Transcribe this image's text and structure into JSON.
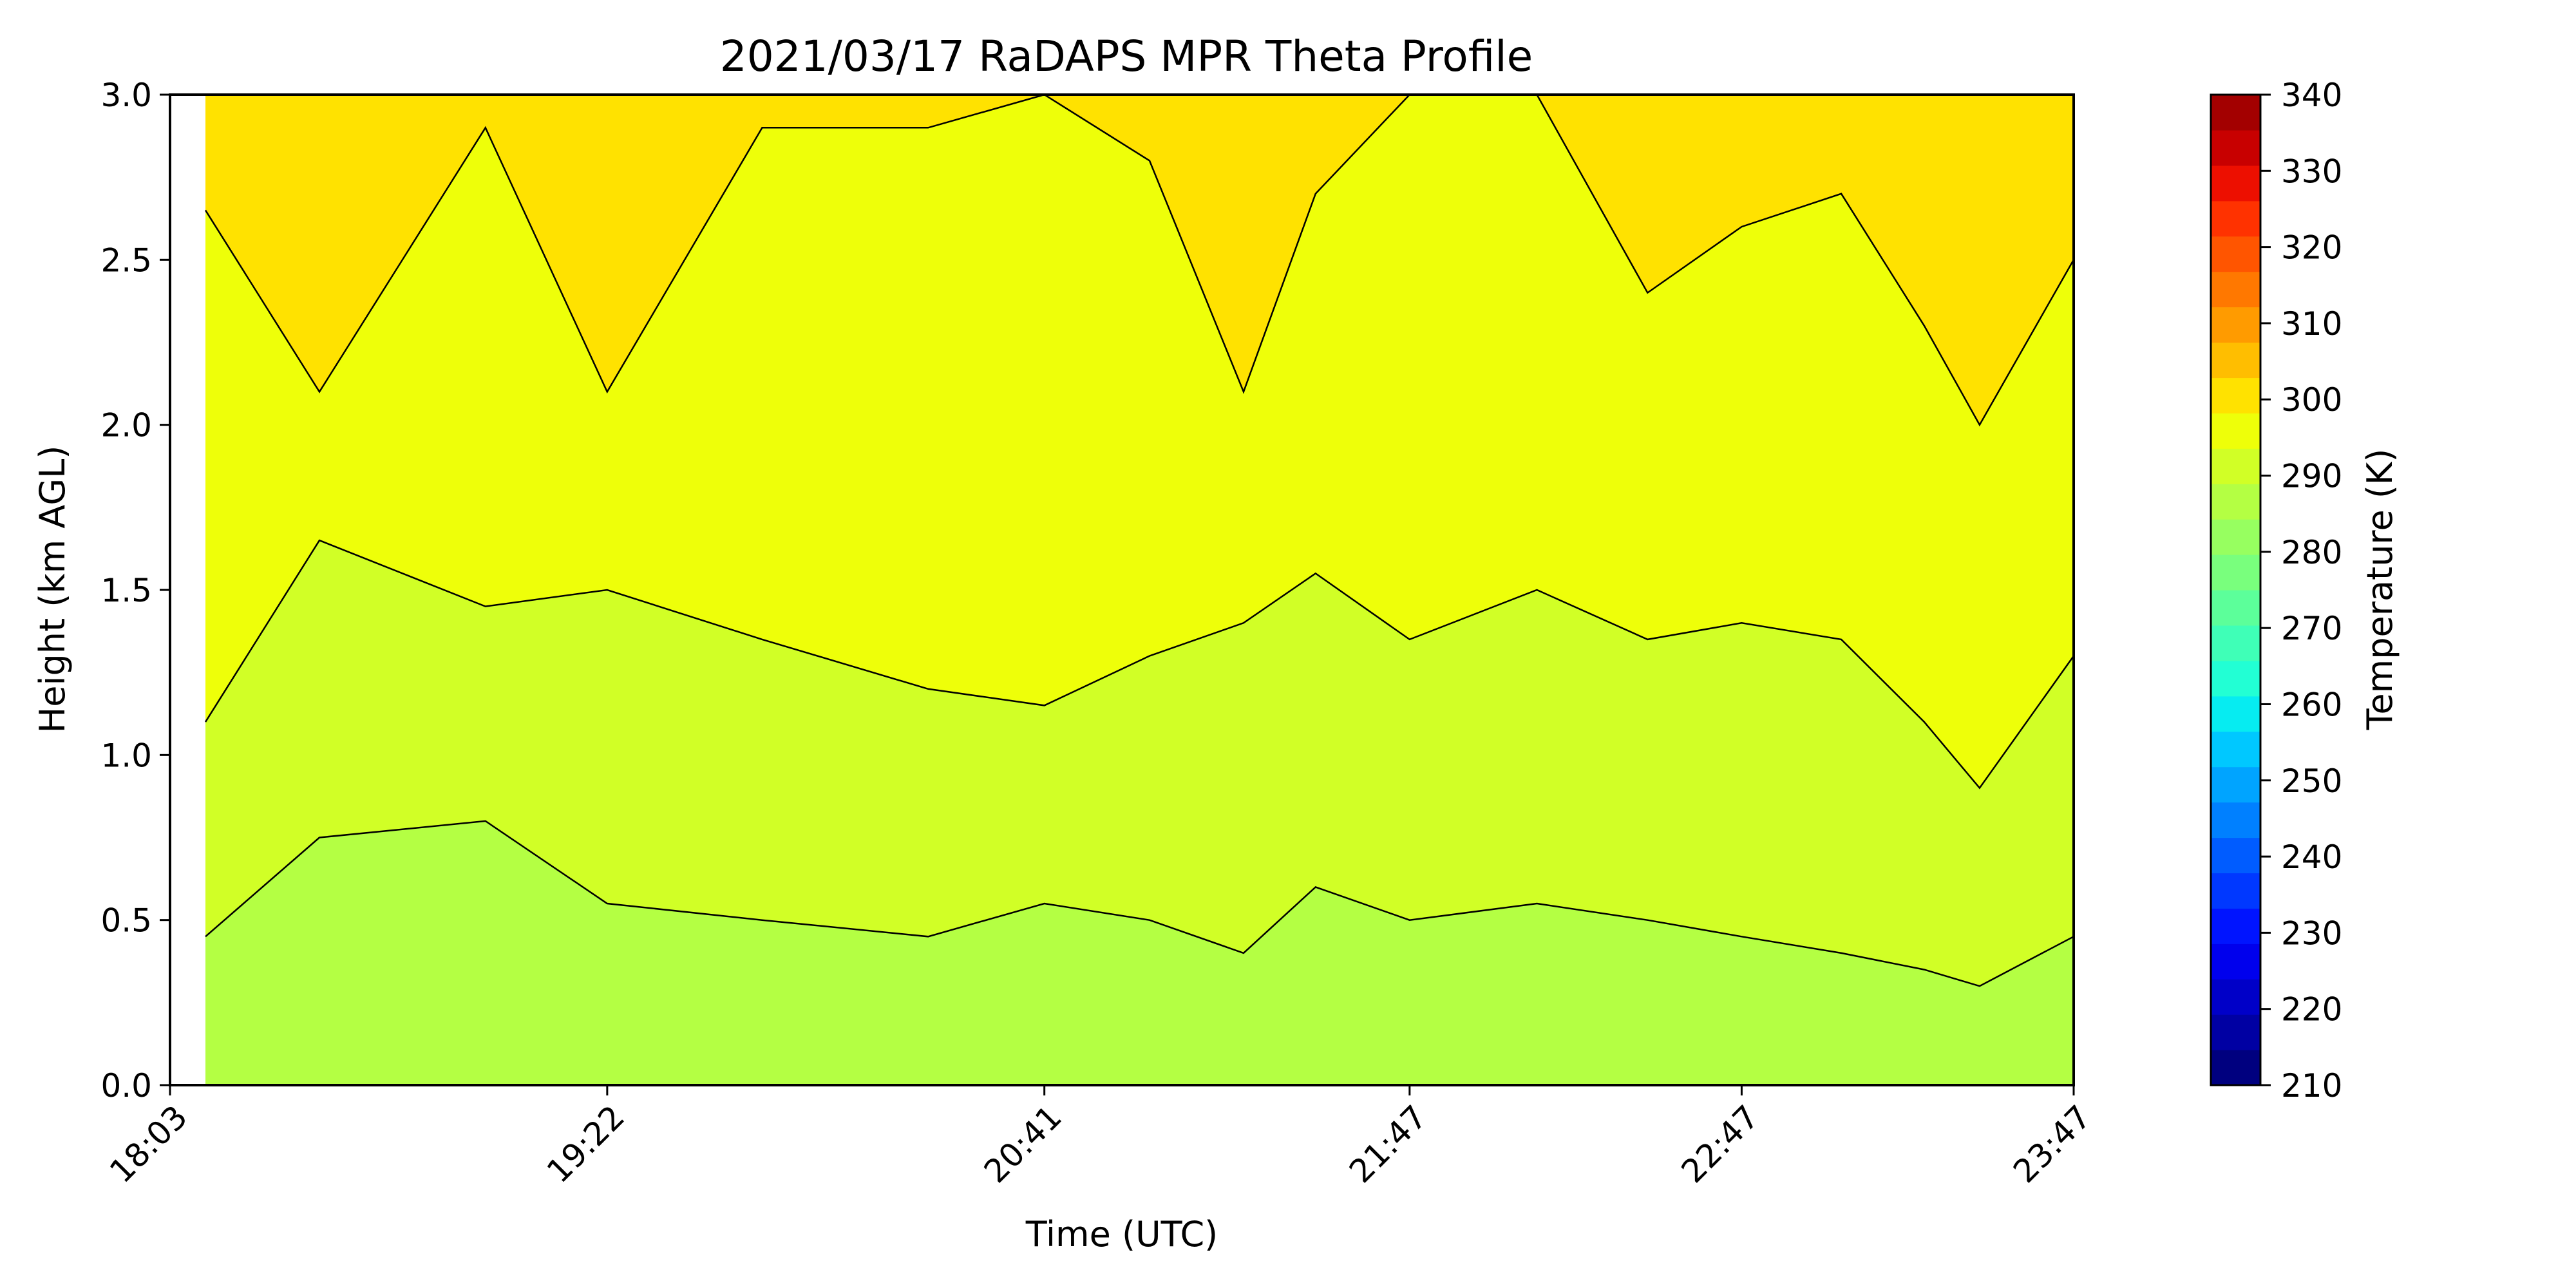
{
  "chart_data": {
    "type": "heatmap",
    "subtype": "filled-contour",
    "title": "2021/03/17 RaDAPS MPR Theta Profile",
    "xlabel": "Time (UTC)",
    "ylabel": "Height (km AGL)",
    "xlim": [
      "18:03",
      "23:47"
    ],
    "ylim": [
      0.0,
      3.0
    ],
    "x_ticks": [
      "18:03",
      "19:22",
      "20:41",
      "21:47",
      "22:47",
      "23:47"
    ],
    "y_ticks": [
      "0.0",
      "0.5",
      "1.0",
      "1.5",
      "2.0",
      "2.5",
      "3.0"
    ],
    "grid": false,
    "colorbar": {
      "label": "Temperature (K)",
      "range": [
        210,
        340
      ],
      "step": 5,
      "tick_labels": [
        "210",
        "220",
        "230",
        "240",
        "250",
        "260",
        "270",
        "280",
        "290",
        "300",
        "310",
        "320",
        "330",
        "340"
      ],
      "colormap": "jet",
      "colors": [
        "#00007f",
        "#0000a3",
        "#0000c8",
        "#0000ed",
        "#0014ff",
        "#0038ff",
        "#005cff",
        "#0080ff",
        "#00a4ff",
        "#00c8ff",
        "#06ecf1",
        "#22ffd4",
        "#3fffb7",
        "#5cff9a",
        "#79ff7d",
        "#97ff60",
        "#b4ff43",
        "#d1ff26",
        "#eeff09",
        "#ffe200",
        "#ffbe00",
        "#ff9b00",
        "#ff7800",
        "#ff5500",
        "#ff3200",
        "#ed0f00",
        "#c80000",
        "#a30000"
      ]
    },
    "contour_levels_K": [
      285,
      290,
      295,
      300,
      305,
      310
    ],
    "contour_line_color": "#000000",
    "band_heights_km": {
      "times_hhmm": [
        "18:03",
        "18:30",
        "19:00",
        "19:22",
        "19:50",
        "20:20",
        "20:41",
        "21:00",
        "21:17",
        "21:30",
        "21:47",
        "22:10",
        "22:30",
        "22:47",
        "23:05",
        "23:20",
        "23:30",
        "23:47"
      ],
      "isoline_290K": [
        0.45,
        0.75,
        0.8,
        0.55,
        0.5,
        0.45,
        0.55,
        0.5,
        0.4,
        0.6,
        0.5,
        0.55,
        0.5,
        0.45,
        0.4,
        0.35,
        0.3,
        0.45
      ],
      "isoline_295K": [
        1.1,
        1.65,
        1.45,
        1.5,
        1.35,
        1.2,
        1.15,
        1.3,
        1.4,
        1.55,
        1.35,
        1.5,
        1.35,
        1.4,
        1.35,
        1.1,
        0.9,
        1.3
      ],
      "isoline_300K": [
        2.65,
        2.1,
        2.9,
        2.1,
        2.9,
        2.9,
        3.0,
        2.8,
        2.1,
        2.7,
        3.0,
        3.0,
        2.4,
        2.6,
        2.7,
        2.3,
        2.0,
        2.5
      ]
    }
  }
}
